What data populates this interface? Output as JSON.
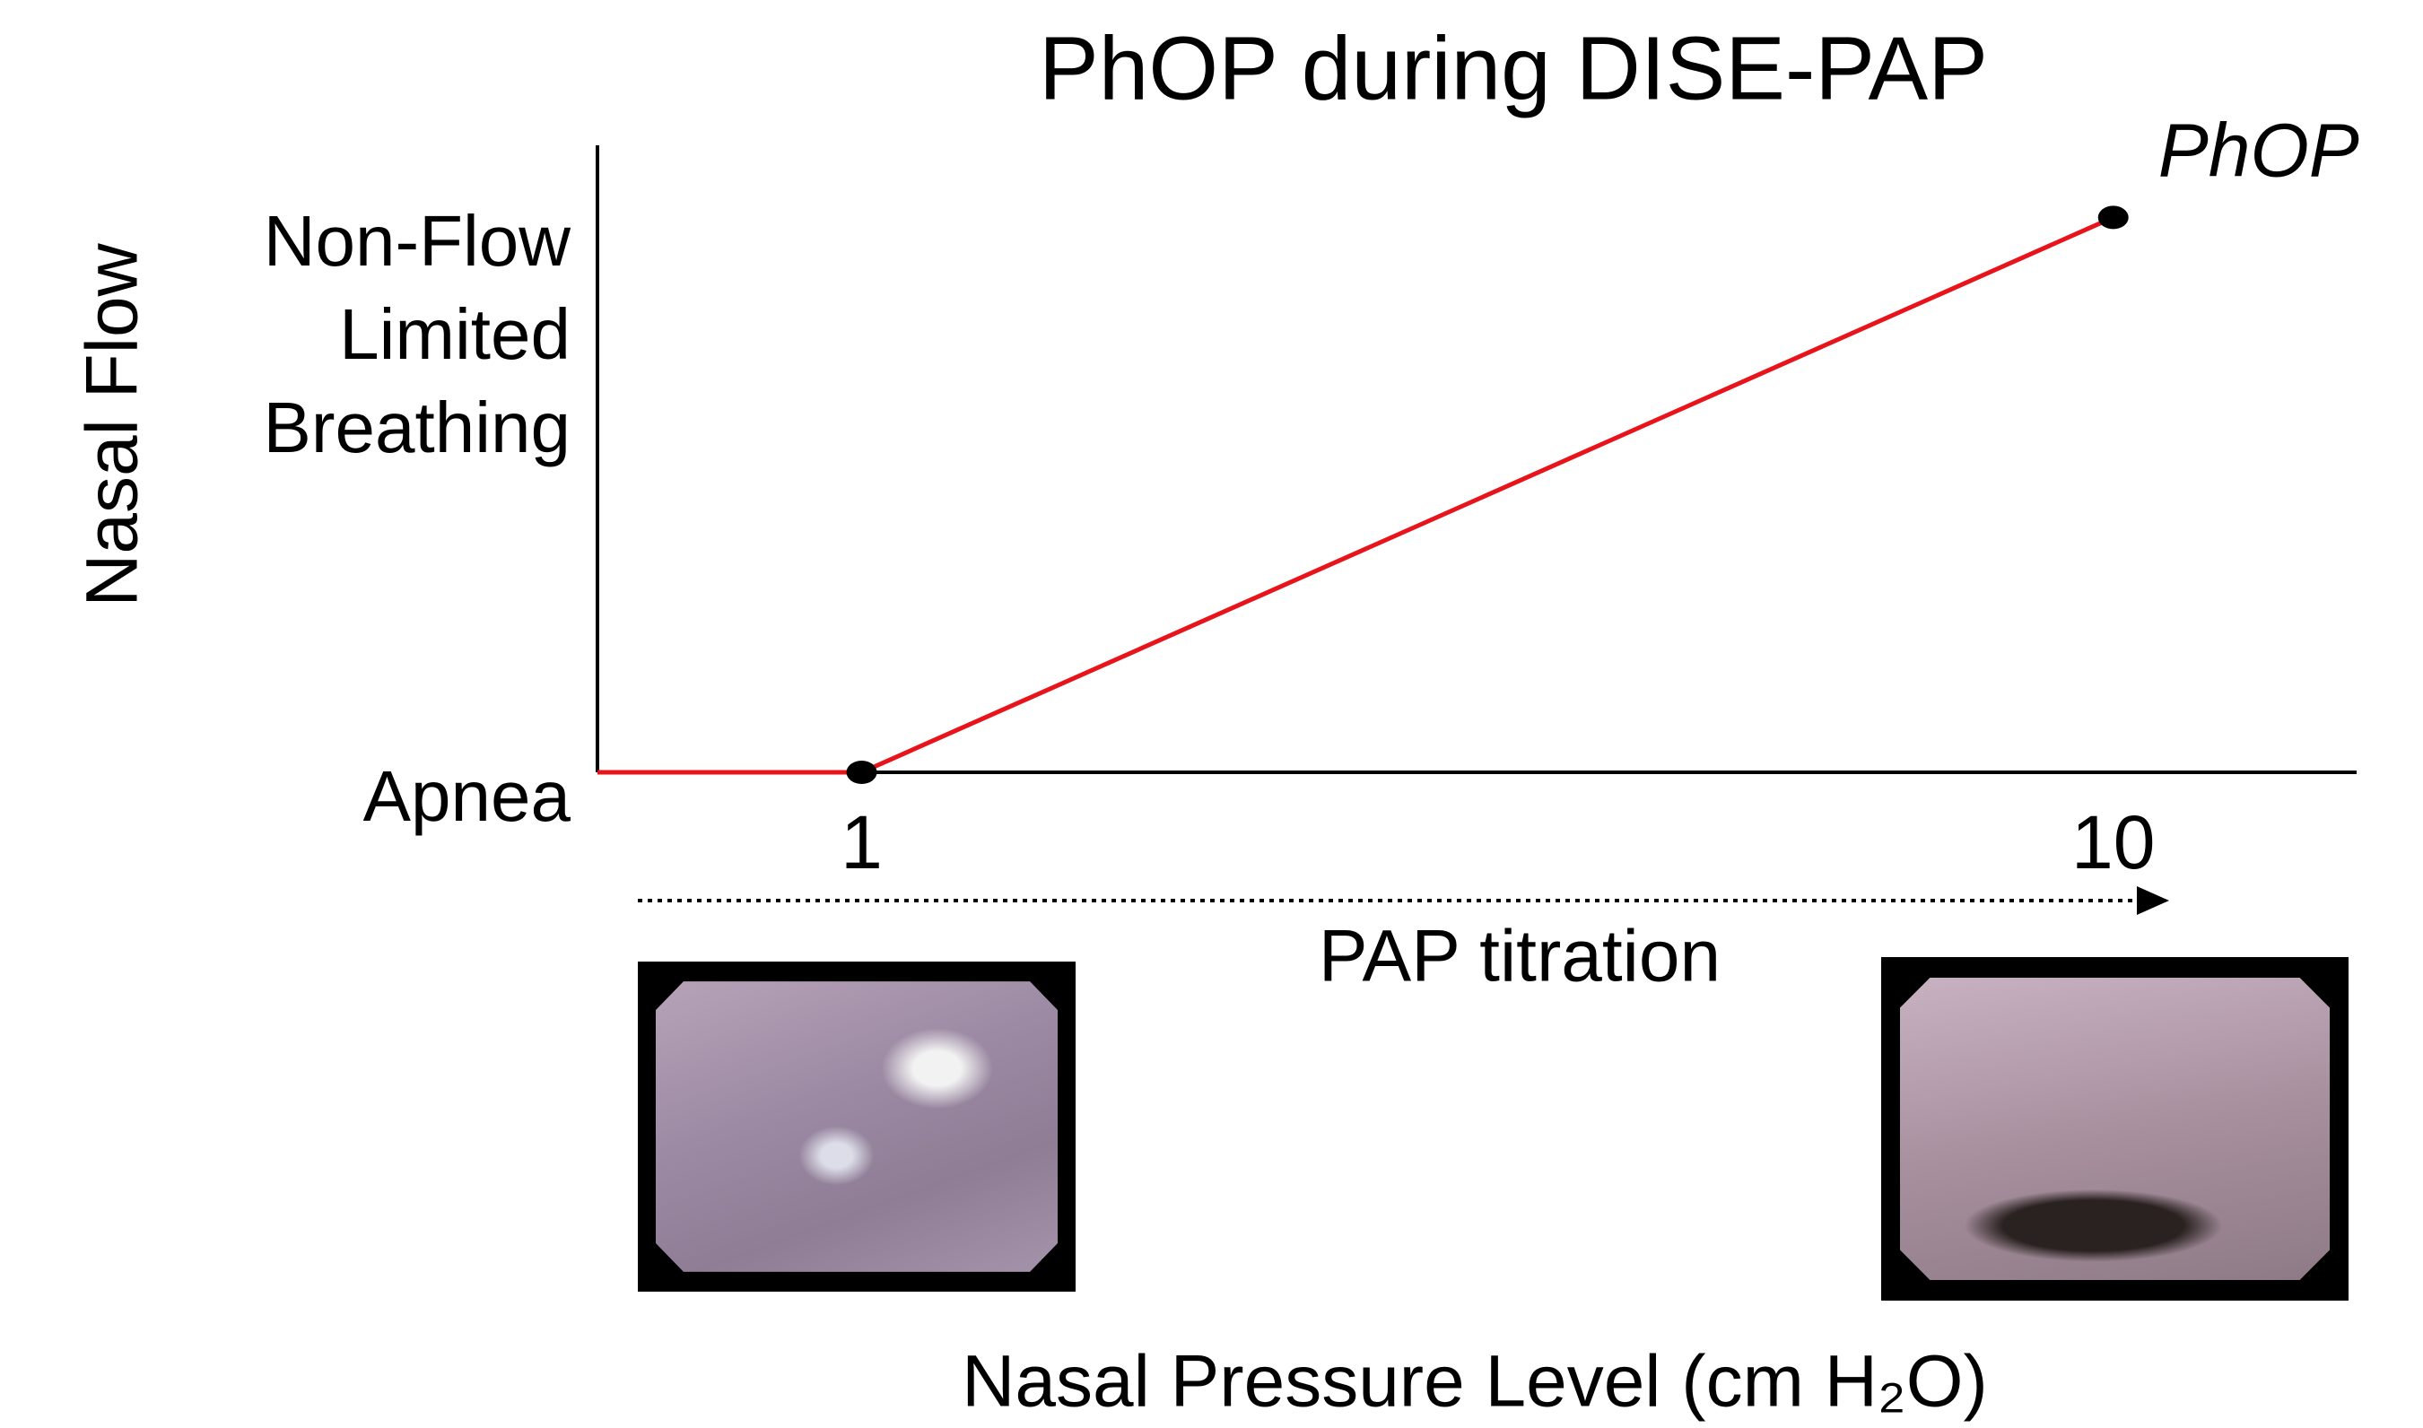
{
  "chart_data": {
    "type": "line",
    "title": "PhOP during DISE-PAP",
    "x": [
      -0.9,
      1,
      10
    ],
    "series": [
      {
        "name": "PhOP",
        "color": "#e8141b",
        "values": [
          0,
          0,
          1
        ]
      }
    ],
    "xlim": [
      -0.9,
      11.75
    ],
    "xticks": [
      1,
      10
    ],
    "ylim": [
      0,
      1.13
    ],
    "yticks": [
      {
        "value": 0,
        "label": "Apnea"
      },
      {
        "value": 1,
        "label": "Non-Flow Limited Breathing"
      }
    ],
    "y_label": "Nasal Flow",
    "x_label": "Nasal Pressure Level (cm H₂O)",
    "arrow_label": "PAP titration",
    "grid": false
  }
}
